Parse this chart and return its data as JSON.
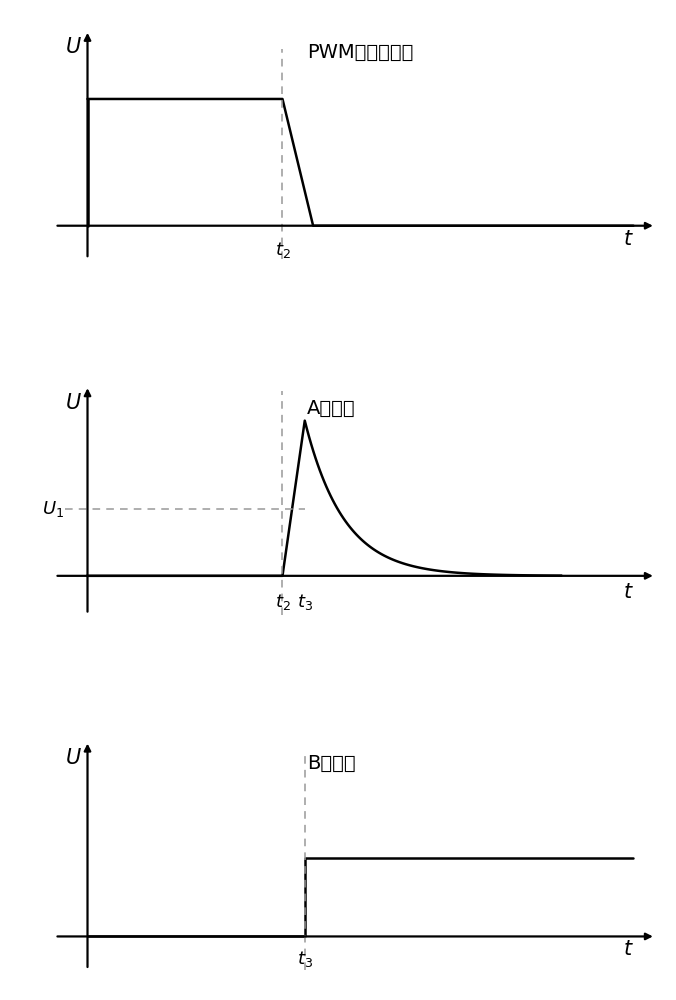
{
  "title1": "PWM信号下降沿",
  "title2": "A点电势",
  "title3": "B点电势",
  "ylabel": "U",
  "xlabel": "t",
  "t2": 0.35,
  "t3": 0.39,
  "pwm_high": 0.68,
  "U1_level": 0.38,
  "pulse_peak": 0.88,
  "step_level": 0.42,
  "bg_color": "#ffffff",
  "line_color": "#000000",
  "dashed_color": "#999999",
  "font_size_title": 14,
  "font_size_label": 15,
  "font_size_tick": 13,
  "lw_signal": 1.8,
  "lw_axis": 1.6,
  "lw_dash": 1.1
}
